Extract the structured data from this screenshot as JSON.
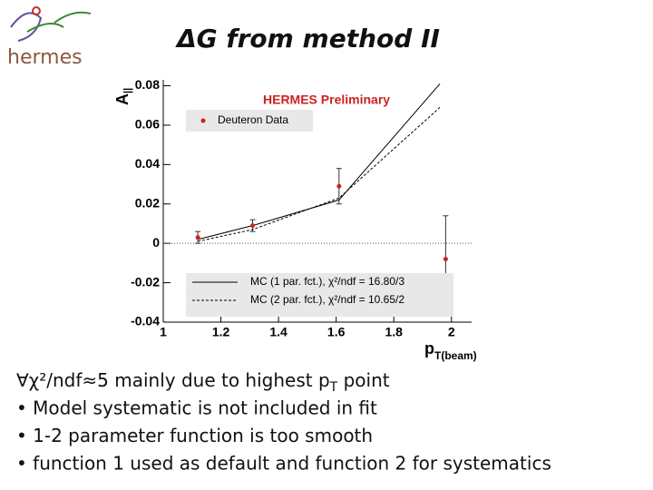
{
  "logo": "hermes",
  "title": "ΔG from method II",
  "bullets": [
    {
      "text": "∀χ²/ndf≈5 mainly due to highest p",
      "sub": "T",
      "after": " point"
    },
    {
      "text": "• Model systematic is not included in fit"
    },
    {
      "text": "• 1-2 parameter function is too smooth"
    },
    {
      "text": "• function 1 used as default and function 2 for systematics"
    }
  ],
  "chart_data": {
    "type": "scatter",
    "annotation": "HERMES Preliminary",
    "ylabel": {
      "main": "A",
      "sub": "||"
    },
    "xlabel": {
      "main": "p",
      "sub": "T(beam)"
    },
    "xlim": [
      1,
      2.07
    ],
    "ylim": [
      -0.04,
      0.083
    ],
    "xticks": [
      1,
      1.2,
      1.4,
      1.6,
      1.8,
      2
    ],
    "yticks": [
      -0.04,
      -0.02,
      0,
      0.02,
      0.04,
      0.06,
      0.08
    ],
    "zero_line": true,
    "series": [
      {
        "name": "Deuteron Data",
        "color": "#cc2222",
        "style": "points",
        "x": [
          1.12,
          1.31,
          1.61,
          1.98
        ],
        "values": [
          0.003,
          0.009,
          0.029,
          -0.008
        ],
        "errors": [
          0.003,
          0.003,
          0.009,
          0.022
        ]
      },
      {
        "name": "MC (1 par. fct.), χ²/ndf = 16.80/3",
        "color": "#000000",
        "style": "solid",
        "x": [
          1.12,
          1.31,
          1.61,
          1.96
        ],
        "values": [
          0.002,
          0.009,
          0.022,
          0.081
        ]
      },
      {
        "name": "MC (2 par. fct.), χ²/ndf = 10.65/2",
        "color": "#000000",
        "style": "dashed",
        "x": [
          1.12,
          1.31,
          1.61,
          1.96
        ],
        "values": [
          0.001,
          0.007,
          0.023,
          0.069
        ]
      }
    ]
  }
}
